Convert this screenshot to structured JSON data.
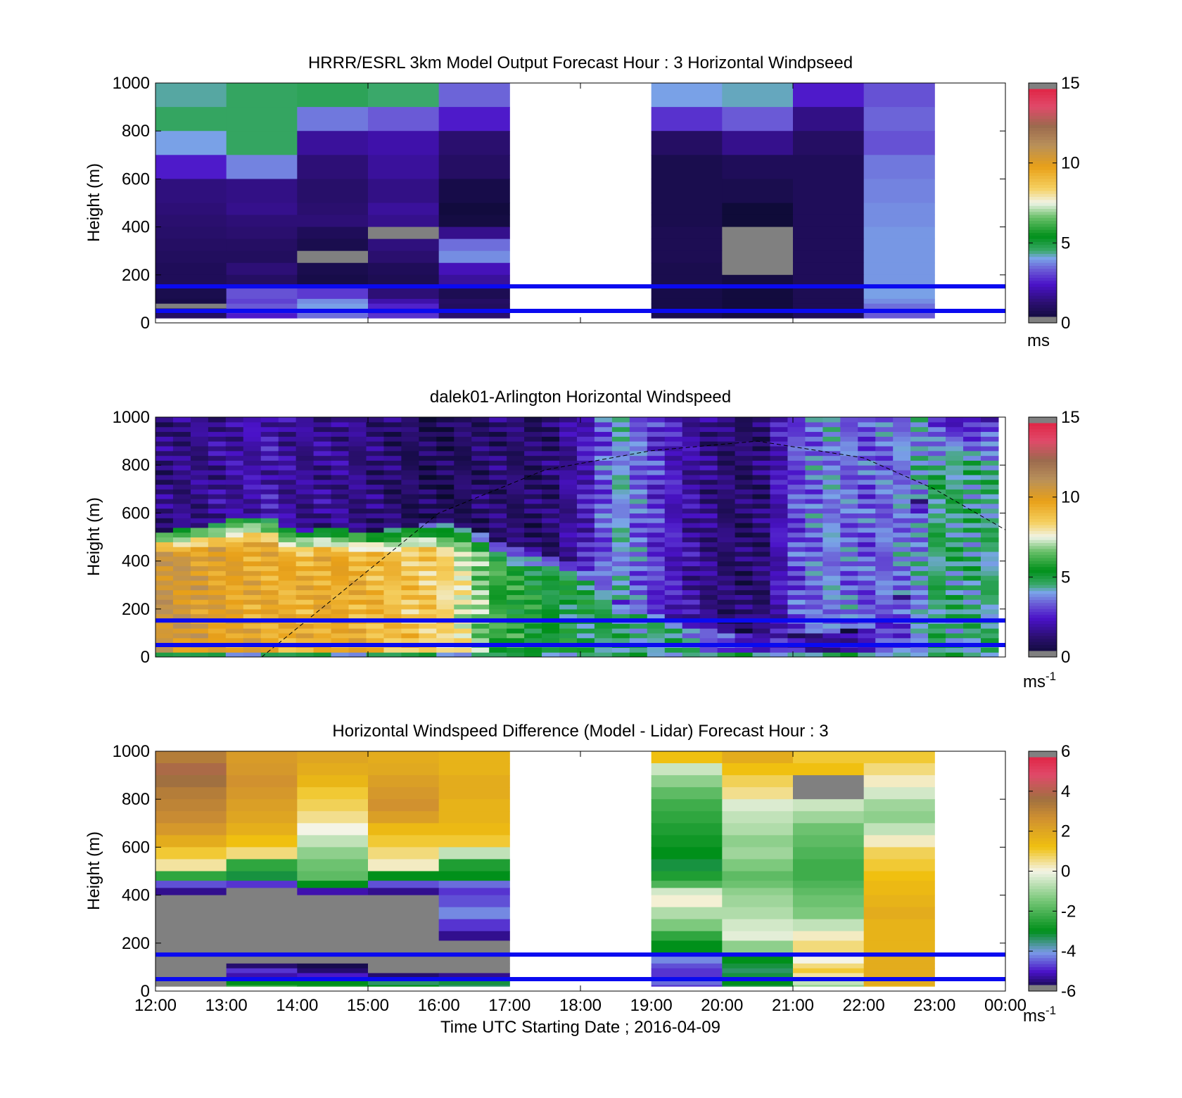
{
  "figure": {
    "xlabel": "Time UTC  Starting Date ; 2016-04-09",
    "x_ticks": [
      "12:00",
      "13:00",
      "14:00",
      "15:00",
      "16:00",
      "17:00",
      "18:00",
      "19:00",
      "20:00",
      "21:00",
      "22:00",
      "23:00",
      "00:00"
    ]
  },
  "colormaps": {
    "speed_stops": [
      [
        0.0,
        "#0a0a2e"
      ],
      [
        0.08,
        "#2a0f6e"
      ],
      [
        0.16,
        "#4a12c8"
      ],
      [
        0.22,
        "#6a5ad6"
      ],
      [
        0.27,
        "#7aa6e8"
      ],
      [
        0.3,
        "#3aa86a"
      ],
      [
        0.36,
        "#00901a"
      ],
      [
        0.44,
        "#6ac06a"
      ],
      [
        0.5,
        "#f0f4e8"
      ],
      [
        0.56,
        "#f5d060"
      ],
      [
        0.65,
        "#e8a018"
      ],
      [
        0.74,
        "#b8905a"
      ],
      [
        0.82,
        "#9c6a4e"
      ],
      [
        0.9,
        "#e04a6a"
      ],
      [
        1.0,
        "#e01a3a"
      ]
    ],
    "diff_stops": [
      [
        0.0,
        "#0a0a2e"
      ],
      [
        0.08,
        "#4a12c8"
      ],
      [
        0.16,
        "#7a9ae6"
      ],
      [
        0.25,
        "#00901a"
      ],
      [
        0.38,
        "#7ac87a"
      ],
      [
        0.5,
        "#f4f4e6"
      ],
      [
        0.6,
        "#f0c010"
      ],
      [
        0.72,
        "#d09030"
      ],
      [
        0.8,
        "#a07040"
      ],
      [
        0.9,
        "#e04a6a"
      ],
      [
        1.0,
        "#e01a3a"
      ]
    ],
    "missing_color": "#808080",
    "line_color": "#0a0af0"
  },
  "chart_data": [
    {
      "type": "heatmap",
      "title": "HRRR/ESRL 3km Model Output   Forecast Hour : 3 Horizontal Windpseed",
      "ylabel": "Height (m)",
      "ylim": [
        0,
        1000
      ],
      "y_ticks": [
        "0",
        "200",
        "400",
        "600",
        "800",
        "1000"
      ],
      "colorbar": {
        "min": 0,
        "max": 15,
        "ticks": [
          "0",
          "5",
          "10",
          "15"
        ],
        "unit": "ms",
        "unit_sup": ""
      },
      "reference_lines_m": [
        50,
        152
      ],
      "data_x_hours": [
        12,
        13,
        14,
        15,
        16,
        19,
        20,
        21,
        22
      ],
      "levels": [
        {
          "top": 1000,
          "values": [
            4.3,
            4.6,
            4.7,
            4.5,
            3.4,
            4.0,
            4.2,
            2.5,
            3.2
          ]
        },
        {
          "top": 900,
          "values": [
            4.6,
            4.6,
            3.6,
            3.3,
            2.5,
            2.8,
            3.3,
            1.5,
            3.4
          ]
        },
        {
          "top": 800,
          "values": [
            4.0,
            4.6,
            1.8,
            2.0,
            1.2,
            1.0,
            1.6,
            1.0,
            3.2
          ]
        },
        {
          "top": 700,
          "values": [
            2.5,
            3.7,
            1.3,
            1.8,
            1.0,
            0.6,
            0.8,
            0.8,
            3.6
          ]
        },
        {
          "top": 600,
          "values": [
            1.4,
            1.5,
            1.1,
            1.5,
            0.5,
            0.6,
            0.6,
            0.8,
            3.7
          ]
        },
        {
          "top": 500,
          "values": [
            1.3,
            1.6,
            1.2,
            1.8,
            0.3,
            0.6,
            0.2,
            0.8,
            3.8
          ]
        },
        {
          "top": 450,
          "values": [
            1.2,
            1.3,
            1.3,
            1.6,
            0.4,
            0.6,
            0.2,
            0.8,
            3.8
          ]
        },
        {
          "top": 400,
          "values": [
            1.1,
            1.2,
            0.8,
            null,
            1.6,
            0.7,
            null,
            0.8,
            3.9
          ]
        },
        {
          "top": 350,
          "values": [
            1.0,
            1.0,
            0.6,
            1.4,
            3.5,
            0.7,
            null,
            0.8,
            3.9
          ]
        },
        {
          "top": 300,
          "values": [
            0.9,
            0.9,
            null,
            1.2,
            3.8,
            0.7,
            null,
            0.8,
            3.9
          ]
        },
        {
          "top": 250,
          "values": [
            0.8,
            1.3,
            0.6,
            0.8,
            2.2,
            0.6,
            null,
            0.8,
            3.9
          ]
        },
        {
          "top": 200,
          "values": [
            0.8,
            1.0,
            0.5,
            0.7,
            1.8,
            0.6,
            0.4,
            0.8,
            3.9
          ]
        },
        {
          "top": 150,
          "values": [
            0.6,
            3.2,
            2.9,
            1.3,
            0.7,
            0.5,
            0.3,
            0.7,
            4.0
          ]
        },
        {
          "top": 100,
          "values": [
            0.5,
            3.0,
            3.8,
            2.0,
            1.0,
            0.5,
            0.3,
            0.7,
            3.8
          ]
        },
        {
          "top": 80,
          "values": [
            null,
            3.3,
            4.0,
            2.6,
            0.9,
            0.5,
            0.3,
            0.7,
            3.5
          ]
        },
        {
          "top": 60,
          "values": [
            0.6,
            3.0,
            3.8,
            2.4,
            0.9,
            0.5,
            0.3,
            0.7,
            3.4
          ]
        },
        {
          "top": 40,
          "values": [
            1.0,
            2.5,
            3.5,
            2.8,
            1.2,
            0.6,
            0.4,
            0.8,
            3.3
          ]
        }
      ]
    },
    {
      "type": "heatmap",
      "title": "dalek01-Arlington  Horizontal Windspeed",
      "ylabel": "Height (m)",
      "ylim": [
        0,
        1000
      ],
      "y_ticks": [
        "0",
        "200",
        "400",
        "600",
        "800",
        "1000"
      ],
      "colorbar": {
        "min": 0,
        "max": 15,
        "ticks": [
          "0",
          "5",
          "10",
          "15"
        ],
        "unit": "ms",
        "unit_sup": "-1"
      },
      "reference_lines_m": [
        50,
        152
      ],
      "data_x_range_hours": [
        12,
        23.9
      ],
      "column_profiles": [
        {
          "t": 12.0,
          "jet_top": 520,
          "jet_max": 10.8,
          "upper": 1.4
        },
        {
          "t": 12.6,
          "jet_top": 540,
          "jet_max": 10.2,
          "upper": 1.5
        },
        {
          "t": 13.0,
          "jet_top": 580,
          "jet_max": 9.8,
          "upper": 1.8
        },
        {
          "t": 13.6,
          "jet_top": 590,
          "jet_max": 9.5,
          "upper": 2.2
        },
        {
          "t": 14.0,
          "jet_top": 520,
          "jet_max": 9.3,
          "upper": 1.6
        },
        {
          "t": 14.5,
          "jet_top": 540,
          "jet_max": 9.6,
          "upper": 1.7
        },
        {
          "t": 15.0,
          "jet_top": 520,
          "jet_max": 9.2,
          "upper": 1.4
        },
        {
          "t": 15.5,
          "jet_top": 540,
          "jet_max": 8.8,
          "upper": 1.0
        },
        {
          "t": 16.0,
          "jet_top": 560,
          "jet_max": 8.5,
          "upper": 0.7
        },
        {
          "t": 16.4,
          "jet_top": 540,
          "jet_max": 7.4,
          "upper": 1.0
        },
        {
          "t": 16.8,
          "jet_top": 480,
          "jet_max": 6.0,
          "upper": 1.2
        },
        {
          "t": 17.5,
          "jet_top": 420,
          "jet_max": 5.2,
          "upper": 1.0
        },
        {
          "t": 18.2,
          "jet_top": 380,
          "jet_max": 4.8,
          "upper": 2.6
        },
        {
          "t": 18.5,
          "jet_top": 250,
          "jet_max": 4.6,
          "upper": 4.2
        },
        {
          "t": 19.0,
          "jet_top": 200,
          "jet_max": 4.5,
          "upper": 3.0
        },
        {
          "t": 19.5,
          "jet_top": 150,
          "jet_max": 4.2,
          "upper": 2.0
        },
        {
          "t": 20.0,
          "jet_top": 120,
          "jet_max": 3.0,
          "upper": 1.2
        },
        {
          "t": 20.5,
          "jet_top": 100,
          "jet_max": 2.5,
          "upper": 1.0
        },
        {
          "t": 21.0,
          "jet_top": 100,
          "jet_max": 2.2,
          "upper": 3.0
        },
        {
          "t": 21.5,
          "jet_top": 100,
          "jet_max": 1.5,
          "upper": 3.8
        },
        {
          "t": 22.0,
          "jet_top": 120,
          "jet_max": 2.5,
          "upper": 3.2
        },
        {
          "t": 22.5,
          "jet_top": 200,
          "jet_max": 3.0,
          "upper": 3.6
        },
        {
          "t": 23.0,
          "jet_top": 1000,
          "jet_max": 4.6,
          "upper": 4.4
        },
        {
          "t": 23.9,
          "jet_top": 1000,
          "jet_max": 4.4,
          "upper": 3.8
        }
      ],
      "dashed_curve": {
        "x_hours": [
          13.5,
          14.5,
          16.0,
          17.5,
          19.0,
          20.5,
          22.0,
          23.0,
          24.0
        ],
        "y_m": [
          0,
          240,
          600,
          780,
          860,
          900,
          830,
          700,
          530
        ]
      }
    },
    {
      "type": "heatmap",
      "title": "Horizontal Windspeed Difference (Model - Lidar) Forecast Hour : 3",
      "ylabel": "Height (m)",
      "ylim": [
        0,
        1000
      ],
      "y_ticks": [
        "0",
        "200",
        "400",
        "600",
        "800",
        "1000"
      ],
      "colorbar": {
        "min": -6,
        "max": 6,
        "ticks": [
          "-6",
          "-4",
          "-2",
          "0",
          "2",
          "4",
          "6"
        ],
        "unit": "ms",
        "unit_sup": "-1"
      },
      "reference_lines_m": [
        50,
        152
      ],
      "data_x_hours": [
        12,
        13,
        14,
        15,
        16,
        19,
        20,
        21,
        22
      ],
      "levels": [
        {
          "top": 1000,
          "values": [
            3.2,
            2.3,
            2.0,
            1.8,
            1.6,
            1.2,
            1.8,
            1.0,
            1.0
          ]
        },
        {
          "top": 950,
          "values": [
            3.8,
            2.4,
            1.8,
            1.9,
            1.6,
            -0.5,
            1.2,
            1.2,
            0.6
          ]
        },
        {
          "top": 900,
          "values": [
            3.6,
            2.6,
            1.5,
            2.2,
            1.8,
            -1.2,
            0.8,
            null,
            0.2
          ]
        },
        {
          "top": 850,
          "values": [
            3.2,
            2.4,
            1.0,
            2.4,
            1.8,
            -1.8,
            0.5,
            null,
            -0.4
          ]
        },
        {
          "top": 800,
          "values": [
            3.0,
            2.2,
            0.8,
            2.6,
            1.6,
            -2.2,
            -0.3,
            -0.5,
            -1.0
          ]
        },
        {
          "top": 750,
          "values": [
            2.8,
            2.0,
            0.5,
            2.2,
            1.6,
            -2.4,
            -0.6,
            -1.0,
            -1.2
          ]
        },
        {
          "top": 700,
          "values": [
            2.4,
            1.7,
            0.0,
            1.4,
            1.4,
            -2.6,
            -0.8,
            -1.6,
            -0.6
          ]
        },
        {
          "top": 650,
          "values": [
            1.8,
            1.2,
            -0.6,
            1.0,
            1.0,
            -2.8,
            -1.2,
            -1.8,
            0.2
          ]
        },
        {
          "top": 600,
          "values": [
            1.0,
            0.6,
            -1.2,
            0.6,
            -0.6,
            -3.0,
            -1.0,
            -2.0,
            0.8
          ]
        },
        {
          "top": 550,
          "values": [
            0.4,
            -2.4,
            -1.6,
            0.2,
            -2.6,
            -3.2,
            -1.4,
            -2.2,
            1.0
          ]
        },
        {
          "top": 500,
          "values": [
            -2.4,
            -3.2,
            -1.8,
            -3.0,
            -3.0,
            -2.6,
            -1.8,
            -2.2,
            1.2
          ]
        },
        {
          "top": 460,
          "values": [
            -4.6,
            -4.8,
            -3.0,
            -4.6,
            -4.4,
            -2.0,
            -1.6,
            -2.0,
            1.4
          ]
        },
        {
          "top": 430,
          "values": [
            -5.4,
            null,
            -5.2,
            -5.4,
            -4.8,
            -0.4,
            -1.2,
            -1.8,
            1.4
          ]
        },
        {
          "top": 400,
          "values": [
            null,
            null,
            null,
            null,
            -4.6,
            0.1,
            -1.0,
            -1.6,
            1.6
          ]
        },
        {
          "top": 350,
          "values": [
            null,
            null,
            null,
            null,
            -4.2,
            -0.8,
            -0.8,
            -1.4,
            1.8
          ]
        },
        {
          "top": 300,
          "values": [
            null,
            null,
            null,
            null,
            -4.8,
            -1.4,
            -0.4,
            -0.6,
            1.6
          ]
        },
        {
          "top": 250,
          "values": [
            null,
            null,
            null,
            null,
            -5.4,
            -2.4,
            -0.2,
            0.2,
            1.6
          ]
        },
        {
          "top": 210,
          "values": [
            null,
            null,
            null,
            null,
            null,
            -3.0,
            -1.2,
            0.6,
            1.6
          ]
        },
        {
          "top": 150,
          "values": [
            null,
            null,
            null,
            null,
            null,
            -4.2,
            -3.0,
            0.0,
            1.8
          ]
        },
        {
          "top": 115,
          "values": [
            null,
            -5.6,
            -5.8,
            null,
            null,
            -4.6,
            -3.2,
            0.6,
            1.8
          ]
        },
        {
          "top": 95,
          "values": [
            null,
            -4.8,
            -5.6,
            null,
            null,
            -4.8,
            -3.4,
            1.0,
            1.8
          ]
        },
        {
          "top": 75,
          "values": [
            null,
            -5.2,
            -5.0,
            -5.6,
            -5.4,
            -4.8,
            -3.2,
            0.4,
            1.8
          ]
        },
        {
          "top": 45,
          "values": [
            null,
            -3.0,
            -3.0,
            -3.4,
            -3.2,
            -4.4,
            -3.0,
            -0.6,
            1.8
          ]
        },
        {
          "top": 25,
          "values": [
            null,
            -2.4,
            -2.8,
            -3.0,
            -3.4,
            -4.8,
            -3.2,
            -1.2,
            1.6
          ]
        }
      ]
    }
  ]
}
